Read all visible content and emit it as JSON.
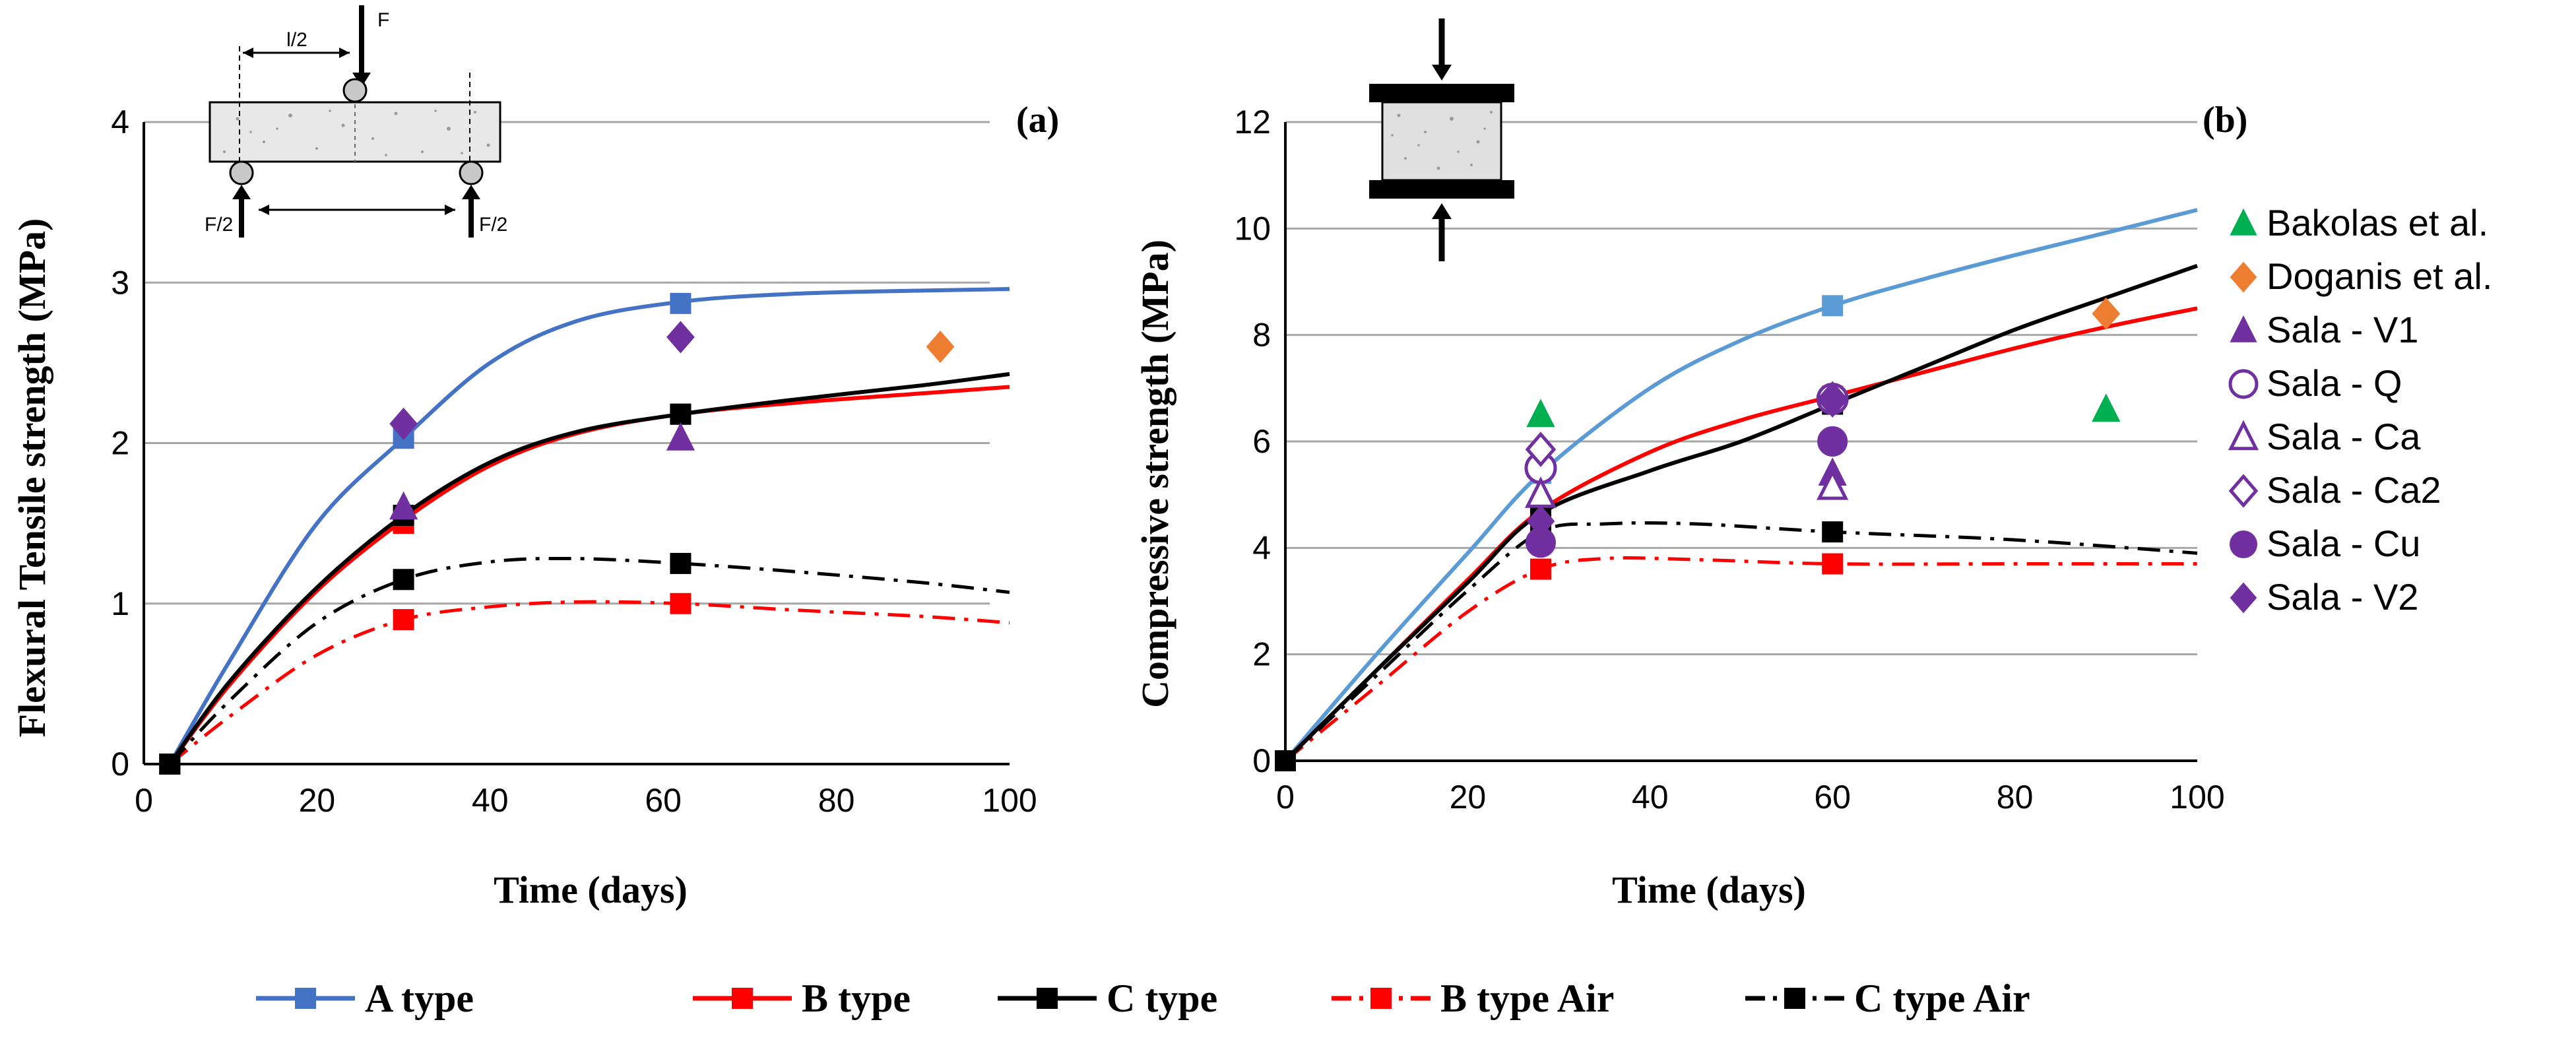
{
  "chart_data": [
    {
      "type": "line",
      "panel_label": "(a)",
      "xlabel": "Time (days)",
      "ylabel": "Flexural Tensile strength (MPa)",
      "xlim": [
        0,
        100
      ],
      "ylim": [
        0,
        4
      ],
      "xticks": [
        "0",
        "20",
        "40",
        "60",
        "80",
        "100"
      ],
      "yticks": [
        "0",
        "1",
        "2",
        "3",
        "4"
      ],
      "grid": "horizontal",
      "inset_labels": {
        "half": "l/2",
        "force": "F",
        "support_left": "F/2",
        "support_right": "F/2"
      },
      "series": [
        {
          "name": "A type",
          "color": "#4472C4",
          "style": "solid",
          "marker": "square",
          "points": [
            [
              3,
              0
            ],
            [
              30,
              2.03
            ],
            [
              62,
              2.87
            ]
          ],
          "curve": [
            [
              3,
              0
            ],
            [
              10,
              0.65
            ],
            [
              20,
              1.5
            ],
            [
              30,
              2.03
            ],
            [
              40,
              2.5
            ],
            [
              50,
              2.76
            ],
            [
              62,
              2.88
            ],
            [
              75,
              2.93
            ],
            [
              90,
              2.95
            ],
            [
              100,
              2.96
            ]
          ]
        },
        {
          "name": "B type",
          "color": "#FF0000",
          "style": "solid",
          "marker": "square",
          "points": [
            [
              3,
              0
            ],
            [
              30,
              1.5
            ],
            [
              62,
              2.18
            ]
          ],
          "curve": [
            [
              3,
              0
            ],
            [
              10,
              0.5
            ],
            [
              20,
              1.08
            ],
            [
              30,
              1.52
            ],
            [
              40,
              1.86
            ],
            [
              50,
              2.06
            ],
            [
              62,
              2.18
            ],
            [
              75,
              2.25
            ],
            [
              90,
              2.31
            ],
            [
              100,
              2.35
            ]
          ]
        },
        {
          "name": "C type",
          "color": "#000000",
          "style": "solid",
          "marker": "square",
          "points": [
            [
              3,
              0
            ],
            [
              30,
              1.55
            ],
            [
              62,
              2.18
            ]
          ],
          "curve": [
            [
              3,
              0
            ],
            [
              10,
              0.52
            ],
            [
              20,
              1.1
            ],
            [
              30,
              1.55
            ],
            [
              40,
              1.88
            ],
            [
              50,
              2.07
            ],
            [
              62,
              2.18
            ],
            [
              75,
              2.27
            ],
            [
              90,
              2.36
            ],
            [
              100,
              2.43
            ]
          ]
        },
        {
          "name": "B type Air",
          "color": "#FF0000",
          "style": "dashdot",
          "marker": "square",
          "points": [
            [
              3,
              0
            ],
            [
              30,
              0.9
            ],
            [
              62,
              1.0
            ]
          ],
          "curve": [
            [
              3,
              0
            ],
            [
              10,
              0.3
            ],
            [
              20,
              0.68
            ],
            [
              30,
              0.9
            ],
            [
              40,
              0.98
            ],
            [
              50,
              1.01
            ],
            [
              62,
              1.0
            ],
            [
              75,
              0.96
            ],
            [
              90,
              0.92
            ],
            [
              100,
              0.88
            ]
          ]
        },
        {
          "name": "C type Air",
          "color": "#000000",
          "style": "dashdot",
          "marker": "square",
          "points": [
            [
              3,
              0
            ],
            [
              30,
              1.15
            ],
            [
              62,
              1.25
            ]
          ],
          "curve": [
            [
              3,
              0
            ],
            [
              10,
              0.4
            ],
            [
              20,
              0.88
            ],
            [
              30,
              1.15
            ],
            [
              40,
              1.26
            ],
            [
              50,
              1.28
            ],
            [
              62,
              1.25
            ],
            [
              75,
              1.2
            ],
            [
              90,
              1.13
            ],
            [
              100,
              1.07
            ]
          ]
        }
      ],
      "references": [
        {
          "name": "Sala - V1",
          "color": "#7030A0",
          "marker": "triangle",
          "filled": true,
          "points": [
            [
              30,
              1.6
            ],
            [
              62,
              2.03
            ]
          ]
        },
        {
          "name": "Sala - V2",
          "color": "#7030A0",
          "marker": "diamond",
          "filled": true,
          "points": [
            [
              30,
              2.12
            ],
            [
              62,
              2.66
            ]
          ]
        },
        {
          "name": "Doganis et al.",
          "color": "#ED7D31",
          "marker": "diamond",
          "filled": true,
          "points": [
            [
              92,
              2.6
            ]
          ]
        }
      ]
    },
    {
      "type": "line",
      "panel_label": "(b)",
      "xlabel": "Time (days)",
      "ylabel": "Compressive strength (MPa)",
      "xlim": [
        0,
        100
      ],
      "ylim": [
        0,
        12
      ],
      "xticks": [
        "0",
        "20",
        "40",
        "60",
        "80",
        "100"
      ],
      "yticks": [
        "0",
        "2",
        "4",
        "6",
        "8",
        "10",
        "12"
      ],
      "grid": "horizontal",
      "series": [
        {
          "name": "A type",
          "color": "#5B9BD5",
          "style": "solid",
          "marker": "square",
          "points": [
            [
              0,
              0
            ],
            [
              28,
              5.4
            ],
            [
              60,
              8.55
            ]
          ],
          "curve": [
            [
              0,
              0
            ],
            [
              10,
              2.0
            ],
            [
              20,
              3.9
            ],
            [
              28,
              5.4
            ],
            [
              40,
              7.0
            ],
            [
              50,
              7.9
            ],
            [
              60,
              8.55
            ],
            [
              70,
              9.05
            ],
            [
              80,
              9.5
            ],
            [
              90,
              9.92
            ],
            [
              100,
              10.35
            ]
          ]
        },
        {
          "name": "B type",
          "color": "#FF0000",
          "style": "solid",
          "marker": "square",
          "points": [
            [
              0,
              0
            ],
            [
              28,
              4.7
            ],
            [
              60,
              6.85
            ]
          ],
          "curve": [
            [
              0,
              0
            ],
            [
              10,
              1.7
            ],
            [
              20,
              3.4
            ],
            [
              28,
              4.7
            ],
            [
              40,
              5.8
            ],
            [
              50,
              6.4
            ],
            [
              60,
              6.85
            ],
            [
              70,
              7.3
            ],
            [
              80,
              7.75
            ],
            [
              90,
              8.15
            ],
            [
              100,
              8.5
            ]
          ]
        },
        {
          "name": "C type",
          "color": "#000000",
          "style": "solid",
          "marker": "square",
          "points": [
            [
              0,
              0
            ],
            [
              28,
              4.65
            ],
            [
              60,
              6.7
            ]
          ],
          "curve": [
            [
              0,
              0
            ],
            [
              10,
              1.7
            ],
            [
              20,
              3.35
            ],
            [
              28,
              4.65
            ],
            [
              40,
              5.45
            ],
            [
              50,
              6.0
            ],
            [
              60,
              6.7
            ],
            [
              70,
              7.4
            ],
            [
              80,
              8.1
            ],
            [
              90,
              8.7
            ],
            [
              100,
              9.3
            ]
          ]
        },
        {
          "name": "B type Air",
          "color": "#FF0000",
          "style": "dashdot",
          "marker": "square",
          "points": [
            [
              0,
              0
            ],
            [
              28,
              3.6
            ],
            [
              60,
              3.7
            ]
          ],
          "curve": [
            [
              0,
              0
            ],
            [
              10,
              1.4
            ],
            [
              20,
              2.8
            ],
            [
              28,
              3.6
            ],
            [
              35,
              3.8
            ],
            [
              45,
              3.78
            ],
            [
              60,
              3.7
            ],
            [
              80,
              3.7
            ],
            [
              100,
              3.7
            ]
          ]
        },
        {
          "name": "C type Air",
          "color": "#000000",
          "style": "dashdot",
          "marker": "square",
          "points": [
            [
              0,
              0
            ],
            [
              28,
              4.3
            ],
            [
              60,
              4.3
            ]
          ],
          "curve": [
            [
              0,
              0
            ],
            [
              10,
              1.6
            ],
            [
              20,
              3.2
            ],
            [
              28,
              4.3
            ],
            [
              35,
              4.45
            ],
            [
              45,
              4.45
            ],
            [
              60,
              4.3
            ],
            [
              80,
              4.15
            ],
            [
              100,
              3.9
            ]
          ]
        }
      ],
      "references": [
        {
          "name": "Bakolas et al.",
          "color": "#00B050",
          "marker": "triangle",
          "filled": true,
          "points": [
            [
              28,
              6.5
            ],
            [
              90,
              6.6
            ]
          ]
        },
        {
          "name": "Doganis et al.",
          "color": "#ED7D31",
          "marker": "diamond",
          "filled": true,
          "points": [
            [
              90,
              8.4
            ]
          ]
        },
        {
          "name": "Sala - V1",
          "color": "#7030A0",
          "marker": "triangle",
          "filled": true,
          "points": [
            [
              28,
              5.6
            ],
            [
              60,
              5.4
            ]
          ]
        },
        {
          "name": "Sala - Q",
          "color": "#7030A0",
          "marker": "circle",
          "filled": false,
          "points": [
            [
              28,
              5.5
            ],
            [
              60,
              6.8
            ]
          ]
        },
        {
          "name": "Sala - Ca",
          "color": "#7030A0",
          "marker": "triangle",
          "filled": false,
          "points": [
            [
              28,
              5.0
            ],
            [
              60,
              5.15
            ]
          ]
        },
        {
          "name": "Sala - Ca2",
          "color": "#7030A0",
          "marker": "diamond",
          "filled": false,
          "points": [
            [
              28,
              5.85
            ],
            [
              60,
              6.8
            ]
          ]
        },
        {
          "name": "Sala - Cu",
          "color": "#7030A0",
          "marker": "circle",
          "filled": true,
          "points": [
            [
              28,
              4.1
            ],
            [
              60,
              6.0
            ]
          ]
        },
        {
          "name": "Sala - V2",
          "color": "#7030A0",
          "marker": "diamond",
          "filled": true,
          "points": [
            [
              28,
              4.5
            ],
            [
              60,
              6.75
            ]
          ]
        }
      ]
    }
  ],
  "side_legend": [
    {
      "label": "Bakolas et al.",
      "color": "#00B050",
      "marker": "triangle",
      "filled": true
    },
    {
      "label": "Doganis et al.",
      "color": "#ED7D31",
      "marker": "diamond",
      "filled": true
    },
    {
      "label": "Sala - V1",
      "color": "#7030A0",
      "marker": "triangle",
      "filled": true
    },
    {
      "label": "Sala - Q",
      "color": "#7030A0",
      "marker": "circle",
      "filled": false
    },
    {
      "label": "Sala - Ca",
      "color": "#7030A0",
      "marker": "triangle",
      "filled": false
    },
    {
      "label": "Sala - Ca2",
      "color": "#7030A0",
      "marker": "diamond",
      "filled": false
    },
    {
      "label": "Sala - Cu",
      "color": "#7030A0",
      "marker": "circle",
      "filled": true
    },
    {
      "label": "Sala - V2",
      "color": "#7030A0",
      "marker": "diamond",
      "filled": true
    }
  ],
  "bottom_legend": [
    {
      "label": "A type",
      "color": "#4472C4",
      "style": "solid"
    },
    {
      "label": "B type",
      "color": "#FF0000",
      "style": "solid"
    },
    {
      "label": "C type",
      "color": "#000000",
      "style": "solid"
    },
    {
      "label": "B type Air",
      "color": "#FF0000",
      "style": "dashdot"
    },
    {
      "label": "C type Air",
      "color": "#000000",
      "style": "dashdot"
    }
  ]
}
